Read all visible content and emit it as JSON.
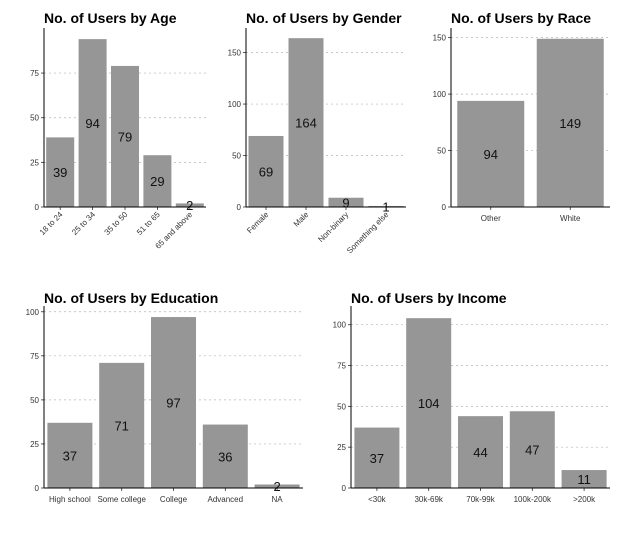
{
  "chart_data": [
    {
      "type": "bar",
      "title": "No. of Users by Age",
      "categories": [
        "18 to 24",
        "25 to 34",
        "35 to 50",
        "51 to 65",
        "65 and above"
      ],
      "values": [
        39,
        94,
        79,
        29,
        2
      ],
      "yticks": [
        0,
        25,
        50,
        75
      ],
      "ylim": [
        0,
        98
      ],
      "xlabel_rotation": "45deg",
      "grid": "horizontal dotted",
      "bar_color": "#969696"
    },
    {
      "type": "bar",
      "title": "No. of Users by Gender",
      "categories": [
        "Female",
        "Male",
        "Non-binary",
        "Something else"
      ],
      "values": [
        69,
        164,
        9,
        1
      ],
      "yticks": [
        0,
        50,
        100,
        150
      ],
      "ylim": [
        0,
        170
      ],
      "xlabel_rotation": "45deg",
      "grid": "horizontal dotted",
      "bar_color": "#969696"
    },
    {
      "type": "bar",
      "title": "No. of Users by Race",
      "categories": [
        "Other",
        "White"
      ],
      "values": [
        94,
        149
      ],
      "yticks": [
        0,
        50,
        100,
        150
      ],
      "ylim": [
        0,
        155
      ],
      "grid": "horizontal dotted",
      "bar_color": "#969696"
    },
    {
      "type": "bar",
      "title": "No. of Users by Education",
      "categories": [
        "High school",
        "Some college",
        "College",
        "Advanced",
        "NA"
      ],
      "values": [
        37,
        71,
        97,
        36,
        2
      ],
      "yticks": [
        0,
        25,
        50,
        75,
        100
      ],
      "ylim": [
        0,
        101
      ],
      "grid": "horizontal dotted",
      "bar_color": "#969696"
    },
    {
      "type": "bar",
      "title": "No. of Users by Income",
      "categories": [
        "<30k",
        "30k-69k",
        "70k-99k",
        "100k-200k",
        ">200k"
      ],
      "values": [
        37,
        104,
        44,
        47,
        11
      ],
      "yticks": [
        0,
        25,
        50,
        75,
        100
      ],
      "ylim": [
        0,
        109
      ],
      "grid": "horizontal dotted",
      "bar_color": "#969696"
    }
  ]
}
